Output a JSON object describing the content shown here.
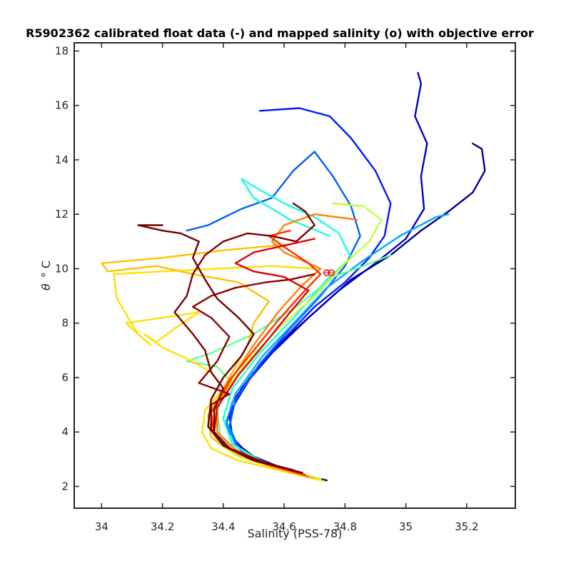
{
  "chart_data": {
    "type": "line",
    "title": "R5902362 calibrated float data (-) and mapped salinity (o) with objective error",
    "xlabel": "Salinity (PSS-78)",
    "ylabel_symbol": "θ",
    "ylabel_unit": "° C",
    "xlim": [
      33.91,
      35.36
    ],
    "ylim": [
      1.2,
      18.3
    ],
    "xticks": [
      34,
      34.2,
      34.4,
      34.6,
      34.8,
      35,
      35.2
    ],
    "xtick_labels": [
      "34",
      "34.2",
      "34.4",
      "34.6",
      "34.8",
      "35",
      "35.2"
    ],
    "yticks": [
      2,
      4,
      6,
      8,
      10,
      12,
      14,
      16,
      18
    ],
    "ytick_labels": [
      "2",
      "4",
      "6",
      "8",
      "10",
      "12",
      "14",
      "16",
      "18"
    ],
    "grid": false,
    "colormap": "jet",
    "mapped_salinity": {
      "marker": "o",
      "color": "#ff0000",
      "points": [
        {
          "x": 34.74,
          "y": 9.85
        },
        {
          "x": 34.755,
          "y": 9.85
        }
      ]
    },
    "series": [
      {
        "color": "#00008f",
        "points": [
          [
            34.74,
            2.22
          ],
          [
            34.62,
            2.55
          ],
          [
            34.5,
            3.1
          ],
          [
            34.44,
            3.6
          ],
          [
            34.41,
            4.3
          ],
          [
            34.43,
            5.1
          ],
          [
            34.5,
            6.2
          ],
          [
            34.6,
            7.4
          ],
          [
            34.74,
            8.8
          ],
          [
            34.82,
            9.6
          ],
          [
            34.95,
            10.5
          ],
          [
            35.05,
            11.4
          ],
          [
            35.14,
            12.1
          ],
          [
            35.22,
            12.8
          ],
          [
            35.26,
            13.6
          ],
          [
            35.25,
            14.4
          ],
          [
            35.22,
            14.6
          ]
        ]
      },
      {
        "color": "#0000c8",
        "points": [
          [
            34.72,
            2.25
          ],
          [
            34.6,
            2.6
          ],
          [
            34.48,
            3.2
          ],
          [
            34.43,
            3.8
          ],
          [
            34.42,
            4.6
          ],
          [
            34.46,
            5.6
          ],
          [
            34.56,
            6.9
          ],
          [
            34.68,
            8.2
          ],
          [
            34.78,
            9.2
          ],
          [
            34.9,
            10.2
          ],
          [
            35.0,
            11.1
          ],
          [
            35.06,
            12.2
          ],
          [
            35.05,
            13.4
          ],
          [
            35.07,
            14.6
          ],
          [
            35.03,
            15.6
          ],
          [
            35.05,
            16.8
          ],
          [
            35.04,
            17.2
          ]
        ]
      },
      {
        "color": "#0018ff",
        "points": [
          [
            34.7,
            2.3
          ],
          [
            34.57,
            2.7
          ],
          [
            34.46,
            3.3
          ],
          [
            34.42,
            4.0
          ],
          [
            34.43,
            4.9
          ],
          [
            34.49,
            6.0
          ],
          [
            34.58,
            7.2
          ],
          [
            34.7,
            8.6
          ],
          [
            34.8,
            9.5
          ],
          [
            34.88,
            10.4
          ],
          [
            34.93,
            11.2
          ],
          [
            34.95,
            12.4
          ],
          [
            34.9,
            13.6
          ],
          [
            34.82,
            14.8
          ],
          [
            34.75,
            15.6
          ],
          [
            34.65,
            15.9
          ],
          [
            34.52,
            15.8
          ]
        ]
      },
      {
        "color": "#0060ff",
        "points": [
          [
            34.68,
            2.35
          ],
          [
            34.55,
            2.8
          ],
          [
            34.45,
            3.4
          ],
          [
            34.42,
            4.2
          ],
          [
            34.44,
            5.2
          ],
          [
            34.52,
            6.5
          ],
          [
            34.62,
            7.8
          ],
          [
            34.72,
            9.0
          ],
          [
            34.8,
            10.1
          ],
          [
            34.85,
            11.2
          ],
          [
            34.82,
            12.3
          ],
          [
            34.76,
            13.4
          ],
          [
            34.7,
            14.3
          ],
          [
            34.63,
            13.6
          ],
          [
            34.56,
            12.6
          ],
          [
            34.46,
            12.2
          ],
          [
            34.35,
            11.6
          ],
          [
            34.28,
            11.4
          ]
        ]
      },
      {
        "color": "#00a8ff",
        "points": [
          [
            34.66,
            2.4
          ],
          [
            34.53,
            2.9
          ],
          [
            34.44,
            3.5
          ],
          [
            34.41,
            4.4
          ],
          [
            34.44,
            5.4
          ],
          [
            34.53,
            6.8
          ],
          [
            34.64,
            8.1
          ],
          [
            34.74,
            9.3
          ],
          [
            34.86,
            10.3
          ],
          [
            34.98,
            11.2
          ],
          [
            35.1,
            11.9
          ],
          [
            35.14,
            12.0
          ]
        ]
      },
      {
        "color": "#18ffe0",
        "points": [
          [
            34.65,
            2.45
          ],
          [
            34.52,
            2.95
          ],
          [
            34.43,
            3.55
          ],
          [
            34.4,
            4.5
          ],
          [
            34.43,
            5.6
          ],
          [
            34.52,
            6.9
          ],
          [
            34.64,
            8.3
          ],
          [
            34.74,
            9.6
          ],
          [
            34.82,
            10.4
          ],
          [
            34.78,
            11.3
          ],
          [
            34.7,
            11.9
          ],
          [
            34.6,
            12.4
          ],
          [
            34.52,
            12.9
          ],
          [
            34.46,
            13.3
          ],
          [
            34.5,
            12.6
          ],
          [
            34.62,
            11.8
          ],
          [
            34.75,
            11.2
          ]
        ]
      },
      {
        "color": "#60ff98",
        "points": [
          [
            34.7,
            2.3
          ],
          [
            34.58,
            2.7
          ],
          [
            34.46,
            3.2
          ],
          [
            34.39,
            3.8
          ],
          [
            34.38,
            4.8
          ],
          [
            34.42,
            5.9
          ],
          [
            34.38,
            6.4
          ],
          [
            34.28,
            6.6
          ],
          [
            34.36,
            6.9
          ],
          [
            34.5,
            7.6
          ],
          [
            34.64,
            8.6
          ],
          [
            34.76,
            9.7
          ],
          [
            34.86,
            10.1
          ],
          [
            34.95,
            10.5
          ]
        ]
      },
      {
        "color": "#c0ff38",
        "points": [
          [
            34.72,
            2.28
          ],
          [
            34.58,
            2.65
          ],
          [
            34.45,
            3.1
          ],
          [
            34.38,
            3.6
          ],
          [
            34.36,
            4.4
          ],
          [
            34.4,
            5.4
          ],
          [
            34.48,
            6.6
          ],
          [
            34.58,
            7.8
          ],
          [
            34.7,
            9.0
          ],
          [
            34.8,
            10.2
          ],
          [
            34.88,
            11.0
          ],
          [
            34.92,
            11.8
          ],
          [
            34.86,
            12.3
          ],
          [
            34.76,
            12.4
          ]
        ]
      },
      {
        "color": "#ffe000",
        "points": [
          [
            34.73,
            2.2
          ],
          [
            34.6,
            2.55
          ],
          [
            34.45,
            2.95
          ],
          [
            34.36,
            3.4
          ],
          [
            34.33,
            4.0
          ],
          [
            34.34,
            4.8
          ],
          [
            34.4,
            5.6
          ],
          [
            34.36,
            6.2
          ],
          [
            34.28,
            6.7
          ],
          [
            34.2,
            7.1
          ],
          [
            34.14,
            7.6
          ],
          [
            34.18,
            7.3
          ],
          [
            34.24,
            7.8
          ],
          [
            34.32,
            8.4
          ],
          [
            34.2,
            8.2
          ],
          [
            34.08,
            8.0
          ],
          [
            34.16,
            7.2
          ],
          [
            34.12,
            7.6
          ],
          [
            34.05,
            8.9
          ],
          [
            34.04,
            9.8
          ],
          [
            34.2,
            9.9
          ],
          [
            34.38,
            10.0
          ],
          [
            34.56,
            10.1
          ],
          [
            34.7,
            10.0
          ]
        ]
      },
      {
        "color": "#ffc000",
        "points": [
          [
            34.7,
            2.3
          ],
          [
            34.56,
            2.7
          ],
          [
            34.44,
            3.2
          ],
          [
            34.36,
            3.8
          ],
          [
            34.35,
            4.6
          ],
          [
            34.4,
            5.6
          ],
          [
            34.44,
            6.4
          ],
          [
            34.48,
            7.2
          ],
          [
            34.5,
            8.0
          ],
          [
            34.55,
            8.8
          ],
          [
            34.45,
            9.5
          ],
          [
            34.3,
            9.8
          ],
          [
            34.18,
            10.1
          ],
          [
            34.02,
            9.9
          ],
          [
            34.0,
            10.2
          ],
          [
            34.2,
            10.4
          ],
          [
            34.42,
            10.7
          ],
          [
            34.62,
            10.9
          ]
        ]
      },
      {
        "color": "#ff8000",
        "points": [
          [
            34.68,
            2.35
          ],
          [
            34.55,
            2.8
          ],
          [
            34.44,
            3.35
          ],
          [
            34.38,
            4.0
          ],
          [
            34.38,
            4.9
          ],
          [
            34.43,
            6.0
          ],
          [
            34.5,
            7.2
          ],
          [
            34.58,
            8.4
          ],
          [
            34.66,
            9.4
          ],
          [
            34.72,
            10.0
          ],
          [
            34.66,
            10.3
          ],
          [
            34.6,
            10.6
          ],
          [
            34.56,
            11.0
          ],
          [
            34.6,
            11.6
          ],
          [
            34.7,
            12.0
          ],
          [
            34.84,
            11.8
          ]
        ]
      },
      {
        "color": "#ff3000",
        "points": [
          [
            34.67,
            2.42
          ],
          [
            34.54,
            2.82
          ],
          [
            34.43,
            3.35
          ],
          [
            34.37,
            3.9
          ],
          [
            34.36,
            4.7
          ],
          [
            34.42,
            5.9
          ],
          [
            34.5,
            7.0
          ],
          [
            34.58,
            8.1
          ],
          [
            34.66,
            9.1
          ],
          [
            34.72,
            9.8
          ],
          [
            34.68,
            10.2
          ],
          [
            34.6,
            10.8
          ],
          [
            34.55,
            11.2
          ],
          [
            34.62,
            11.4
          ]
        ]
      },
      {
        "color": "#e00000",
        "points": [
          [
            34.66,
            2.48
          ],
          [
            34.52,
            2.9
          ],
          [
            34.42,
            3.4
          ],
          [
            34.37,
            4.0
          ],
          [
            34.38,
            4.9
          ],
          [
            34.45,
            6.1
          ],
          [
            34.54,
            7.3
          ],
          [
            34.62,
            8.4
          ],
          [
            34.68,
            9.2
          ],
          [
            34.6,
            9.7
          ],
          [
            34.5,
            9.9
          ],
          [
            34.44,
            10.2
          ],
          [
            34.5,
            10.6
          ],
          [
            34.62,
            10.9
          ],
          [
            34.7,
            11.1
          ]
        ]
      },
      {
        "color": "#800000",
        "points": [
          [
            34.66,
            2.5
          ],
          [
            34.53,
            2.9
          ],
          [
            34.42,
            3.4
          ],
          [
            34.37,
            4.0
          ],
          [
            34.37,
            4.8
          ],
          [
            34.4,
            5.6
          ],
          [
            34.36,
            6.2
          ],
          [
            34.34,
            7.0
          ],
          [
            34.3,
            7.6
          ],
          [
            34.24,
            8.4
          ],
          [
            34.28,
            9.0
          ],
          [
            34.3,
            9.8
          ],
          [
            34.34,
            10.5
          ],
          [
            34.4,
            11.0
          ],
          [
            34.48,
            11.3
          ],
          [
            34.56,
            11.2
          ],
          [
            34.64,
            11.0
          ],
          [
            34.7,
            11.6
          ],
          [
            34.67,
            12.1
          ],
          [
            34.63,
            12.4
          ]
        ]
      },
      {
        "color": "#900000",
        "points": [
          [
            34.64,
            2.55
          ],
          [
            34.5,
            2.95
          ],
          [
            34.41,
            3.45
          ],
          [
            34.36,
            4.1
          ],
          [
            34.36,
            5.0
          ],
          [
            34.42,
            5.4
          ],
          [
            34.32,
            5.8
          ],
          [
            34.38,
            6.6
          ],
          [
            34.42,
            7.5
          ],
          [
            34.36,
            8.2
          ],
          [
            34.3,
            8.6
          ],
          [
            34.36,
            9.0
          ],
          [
            34.44,
            9.3
          ],
          [
            34.54,
            9.5
          ],
          [
            34.62,
            9.6
          ],
          [
            34.7,
            9.8
          ]
        ]
      },
      {
        "color": "#700000",
        "points": [
          [
            34.63,
            2.6
          ],
          [
            34.49,
            3.0
          ],
          [
            34.4,
            3.5
          ],
          [
            34.35,
            4.2
          ],
          [
            34.36,
            5.2
          ],
          [
            34.4,
            6.0
          ],
          [
            34.46,
            6.8
          ],
          [
            34.5,
            7.6
          ],
          [
            34.45,
            8.2
          ],
          [
            34.38,
            8.9
          ],
          [
            34.34,
            9.6
          ],
          [
            34.3,
            10.4
          ],
          [
            34.32,
            11.0
          ],
          [
            34.26,
            11.3
          ],
          [
            34.2,
            11.4
          ],
          [
            34.12,
            11.6
          ],
          [
            34.2,
            11.6
          ]
        ]
      }
    ]
  }
}
